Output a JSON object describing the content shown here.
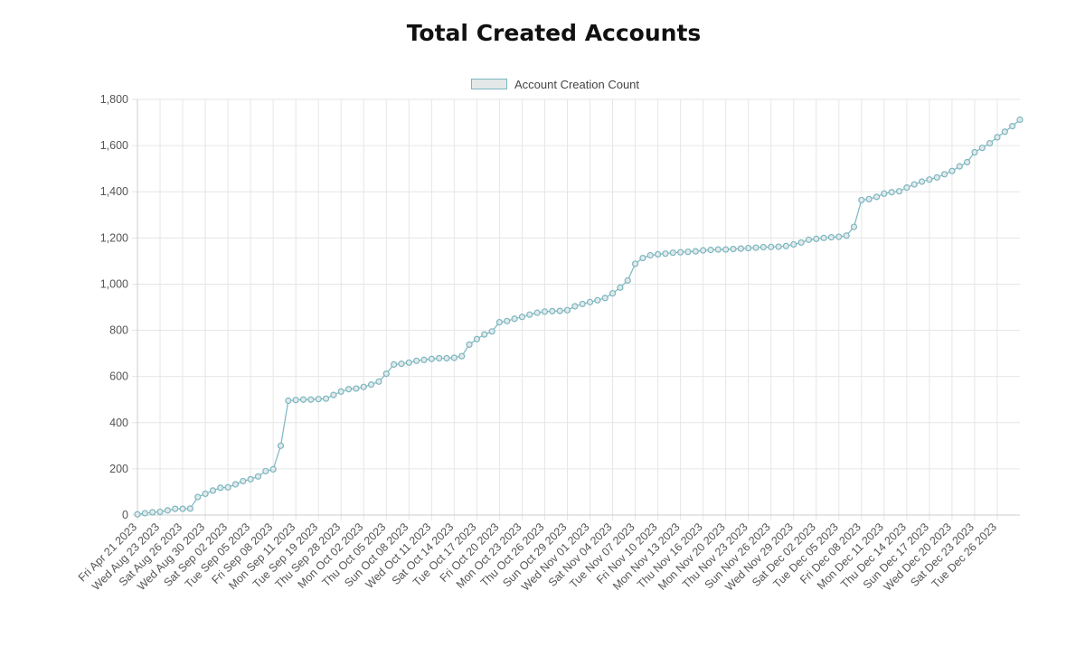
{
  "chart_data": {
    "type": "line",
    "title": "Total Created Accounts",
    "legend": {
      "position": "top-center",
      "entries": [
        "Account Creation Count"
      ]
    },
    "grid": true,
    "ylim": [
      0,
      1800
    ],
    "y_ticks": [
      "0",
      "200",
      "400",
      "600",
      "800",
      "1,000",
      "1,200",
      "1,400",
      "1,600",
      "1,800"
    ],
    "x_tick_labels": [
      "Fri Apr 21 2023",
      "Wed Aug 23 2023",
      "Sat Aug 26 2023",
      "Wed Aug 30 2023",
      "Sat Sep 02 2023",
      "Tue Sep 05 2023",
      "Fri Sep 08 2023",
      "Mon Sep 11 2023",
      "Tue Sep 19 2023",
      "Thu Sep 28 2023",
      "Mon Oct 02 2023",
      "Thu Oct 05 2023",
      "Sun Oct 08 2023",
      "Wed Oct 11 2023",
      "Sat Oct 14 2023",
      "Tue Oct 17 2023",
      "Fri Oct 20 2023",
      "Mon Oct 23 2023",
      "Thu Oct 26 2023",
      "Sun Oct 29 2023",
      "Wed Nov 01 2023",
      "Sat Nov 04 2023",
      "Tue Nov 07 2023",
      "Fri Nov 10 2023",
      "Mon Nov 13 2023",
      "Thu Nov 16 2023",
      "Mon Nov 20 2023",
      "Thu Nov 23 2023",
      "Sun Nov 26 2023",
      "Wed Nov 29 2023",
      "Sat Dec 02 2023",
      "Tue Dec 05 2023",
      "Fri Dec 08 2023",
      "Mon Dec 11 2023",
      "Thu Dec 14 2023",
      "Sun Dec 17 2023",
      "Wed Dec 20 2023",
      "Sat Dec 23 2023",
      "Tue Dec 26 2023"
    ],
    "colors": {
      "line": "#7ab7c1",
      "point_fill": "#e4e8e8",
      "grid": "#e6e6e6",
      "axis": "#cccccc"
    },
    "series": [
      {
        "name": "Account Creation Count",
        "values": [
          3,
          8,
          12,
          14,
          20,
          27,
          27,
          28,
          78,
          92,
          106,
          118,
          120,
          133,
          147,
          155,
          167,
          190,
          198,
          300,
          495,
          498,
          500,
          500,
          502,
          504,
          520,
          535,
          545,
          548,
          555,
          565,
          578,
          612,
          652,
          655,
          660,
          668,
          672,
          676,
          679,
          679,
          681,
          688,
          738,
          762,
          782,
          795,
          835,
          840,
          850,
          858,
          868,
          876,
          881,
          883,
          884,
          887,
          904,
          914,
          922,
          930,
          940,
          960,
          985,
          1016,
          1088,
          1113,
          1125,
          1129,
          1132,
          1136,
          1138,
          1140,
          1142,
          1146,
          1148,
          1150,
          1150,
          1152,
          1154,
          1156,
          1158,
          1160,
          1161,
          1162,
          1165,
          1172,
          1180,
          1192,
          1196,
          1200,
          1203,
          1205,
          1210,
          1248,
          1364,
          1368,
          1378,
          1392,
          1398,
          1402,
          1418,
          1432,
          1444,
          1453,
          1462,
          1476,
          1490,
          1510,
          1528,
          1571,
          1590,
          1610,
          1636,
          1660,
          1684,
          1712
        ]
      }
    ]
  }
}
